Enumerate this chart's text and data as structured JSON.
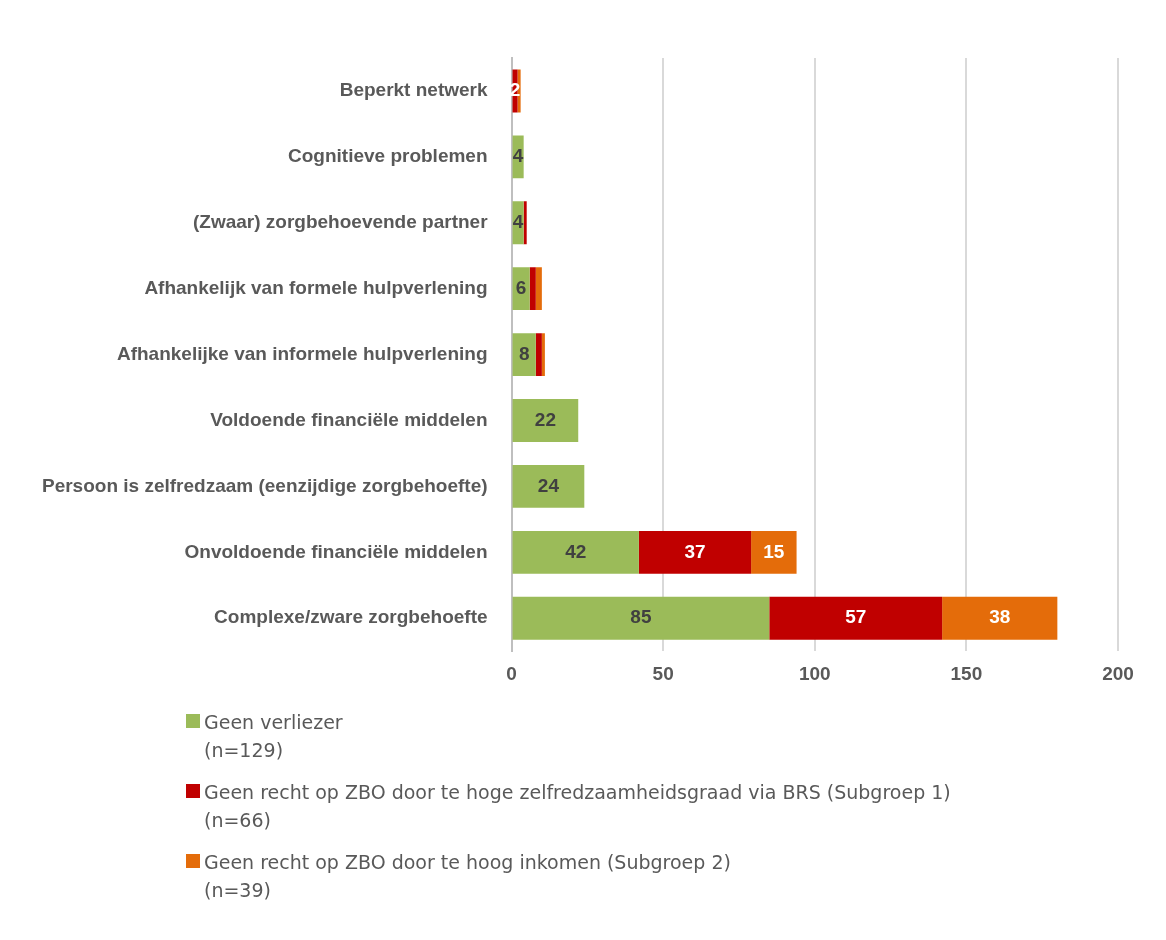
{
  "chart_data": {
    "type": "bar",
    "orientation": "horizontal",
    "stacked": true,
    "categories": [
      "Beperkt netwerk",
      "Cognitieve problemen",
      "(Zwaar) zorgbehoevende partner",
      "Afhankelijk van formele hulpverlening",
      "Afhankelijke van informele hulpverlening",
      "Voldoende financiële middelen",
      "Persoon is zelfredzaam (eenzijdige zorgbehoefte)",
      "Onvoldoende financiële middelen",
      "Complexe/zware zorgbehoefte"
    ],
    "series": [
      {
        "name": "Geen verliezer\n(n=129)",
        "color": "#9bbb59",
        "values": [
          null,
          4,
          4,
          6,
          8,
          22,
          24,
          42,
          85
        ],
        "value_labels": [
          null,
          "4",
          "4",
          "6",
          "8",
          "22",
          "24",
          "42",
          "85"
        ]
      },
      {
        "name": "Geen recht op ZBO door te hoge zelfredzaamheidsgraad via BRS (Subgroep 1)\n(n=66)",
        "color": "#c00000",
        "values": [
          2,
          null,
          1,
          2,
          2,
          null,
          null,
          37,
          57
        ],
        "value_labels": [
          "2",
          null,
          null,
          null,
          null,
          null,
          null,
          "37",
          "57"
        ]
      },
      {
        "name": "Geen recht op ZBO door te hoog inkomen (Subgroep 2)\n(n=39)",
        "color": "#e46c0a",
        "values": [
          1,
          null,
          null,
          2,
          1,
          null,
          null,
          15,
          38
        ],
        "value_labels": [
          null,
          null,
          null,
          null,
          null,
          null,
          null,
          "15",
          "38"
        ]
      }
    ],
    "xlim": [
      0,
      200
    ],
    "xticks": [
      0,
      50,
      100,
      150,
      200
    ],
    "grid": "x",
    "legend": "bottom"
  }
}
